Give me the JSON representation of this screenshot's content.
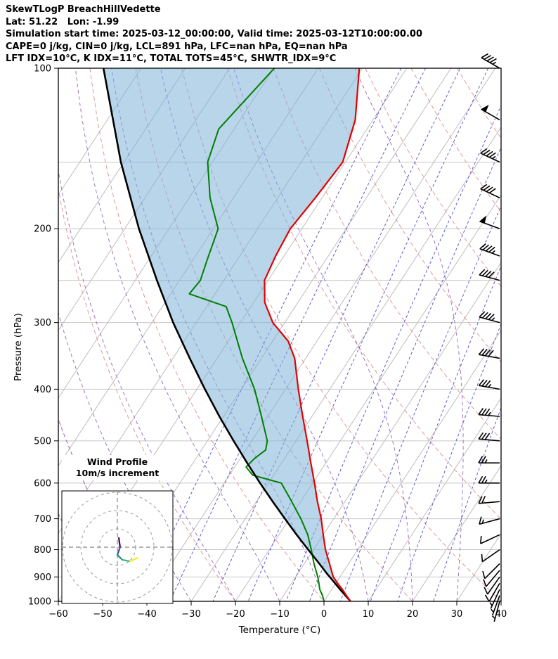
{
  "header": {
    "title": "SkewTLogP BreachHillVedette",
    "location": "Lat: 51.22   Lon: -1.99",
    "times_line": "Simulation start time: 2025-03-12_00:00:00, Valid time: 2025-03-12T10:00:00.00",
    "stability_line1": "CAPE=0 j/kg, CIN=0 j/kg, LCL=891 hPa, LFC=nan hPa, EQ=nan hPa",
    "stability_line2": "LFT IDX=10°C, K IDX=11°C, TOTAL TOTS=45°C, SHWTR_IDX=9°C"
  },
  "axes": {
    "x_label": "Temperature (°C)",
    "y_label": "Pressure (hPa)",
    "x_ticks": [
      -60,
      -50,
      -40,
      -30,
      -20,
      -10,
      0,
      10,
      20,
      30,
      40
    ],
    "y_ticks": [
      100,
      200,
      300,
      400,
      500,
      600,
      700,
      800,
      900,
      1000
    ]
  },
  "inset": {
    "title_line1": "Wind Profile",
    "title_line2": "10m/s increment",
    "ring_interval_ms": 10,
    "rings_ms": [
      10,
      20,
      30
    ]
  },
  "chart_data": {
    "type": "skewt-logp",
    "temperature_range_c": [
      -60,
      40
    ],
    "pressure_range_hpa": [
      100,
      1000
    ],
    "pressure_gridlines_hpa": [
      150,
      200,
      250,
      300,
      400,
      500,
      600,
      700,
      800,
      900
    ],
    "isotherms_c": {
      "start": -120,
      "end": 40,
      "step": 10,
      "color": "#bdbdbd"
    },
    "dry_adiabats_c": {
      "values": [
        -60,
        -40,
        -20,
        0,
        20,
        40,
        60,
        80,
        100,
        120,
        140,
        160,
        180
      ],
      "color": "#de8f8f"
    },
    "moist_adiabats_c": {
      "values": [
        -50,
        -40,
        -30,
        -20,
        -10,
        0,
        10,
        20,
        30,
        40
      ],
      "color": "#9467bd"
    },
    "mixing_ratio_gkg": {
      "values": [
        0.1,
        0.2,
        0.5,
        1,
        2,
        3,
        5,
        8,
        12,
        20
      ],
      "color": "#5050c8"
    },
    "temperature_profile": {
      "name": "temperature",
      "color": "#e60000",
      "points_p_t": [
        [
          1000,
          6.0
        ],
        [
          975,
          4.2
        ],
        [
          950,
          2.4
        ],
        [
          925,
          0.4
        ],
        [
          900,
          -1.5
        ],
        [
          850,
          -4.3
        ],
        [
          800,
          -7.3
        ],
        [
          750,
          -10.0
        ],
        [
          700,
          -12.8
        ],
        [
          650,
          -16.2
        ],
        [
          600,
          -19.6
        ],
        [
          550,
          -23.4
        ],
        [
          500,
          -27.5
        ],
        [
          450,
          -32.1
        ],
        [
          400,
          -37.1
        ],
        [
          350,
          -42.5
        ],
        [
          325,
          -46.5
        ],
        [
          300,
          -52.7
        ],
        [
          275,
          -57.5
        ],
        [
          250,
          -60.8
        ],
        [
          225,
          -61.9
        ],
        [
          200,
          -62.6
        ],
        [
          175,
          -61.5
        ],
        [
          150,
          -60.6
        ],
        [
          125,
          -64.0
        ],
        [
          100,
          -70.7
        ]
      ]
    },
    "dewpoint_profile": {
      "name": "dewpoint",
      "color": "#008000",
      "points_p_t": [
        [
          1000,
          0.0
        ],
        [
          975,
          -1.2
        ],
        [
          950,
          -2.7
        ],
        [
          925,
          -3.8
        ],
        [
          900,
          -5.0
        ],
        [
          850,
          -7.8
        ],
        [
          800,
          -10.5
        ],
        [
          750,
          -13.5
        ],
        [
          700,
          -17.4
        ],
        [
          650,
          -22.0
        ],
        [
          600,
          -27.1
        ],
        [
          580,
          -34.7
        ],
        [
          560,
          -37.4
        ],
        [
          540,
          -36.8
        ],
        [
          520,
          -35.5
        ],
        [
          500,
          -36.5
        ],
        [
          450,
          -41.4
        ],
        [
          400,
          -47.0
        ],
        [
          350,
          -54.3
        ],
        [
          300,
          -61.9
        ],
        [
          280,
          -65.6
        ],
        [
          265,
          -75.8
        ],
        [
          250,
          -75.3
        ],
        [
          230,
          -76.7
        ],
        [
          200,
          -78.9
        ],
        [
          175,
          -85.3
        ],
        [
          150,
          -91.1
        ],
        [
          130,
          -93.5
        ],
        [
          100,
          -89.9
        ]
      ]
    },
    "parcel_profile": {
      "name": "parcel",
      "color": "#000000",
      "points_p_t": [
        [
          1000,
          6.0
        ],
        [
          950,
          1.9
        ],
        [
          900,
          -2.3
        ],
        [
          891,
          -3.1
        ],
        [
          850,
          -6.6
        ],
        [
          800,
          -11.2
        ],
        [
          750,
          -16.0
        ],
        [
          700,
          -21.0
        ],
        [
          650,
          -26.3
        ],
        [
          600,
          -31.9
        ],
        [
          550,
          -37.8
        ],
        [
          500,
          -44.1
        ],
        [
          450,
          -50.9
        ],
        [
          400,
          -58.2
        ],
        [
          350,
          -66.2
        ],
        [
          300,
          -75.2
        ],
        [
          250,
          -85.1
        ],
        [
          200,
          -96.8
        ],
        [
          150,
          -110.7
        ],
        [
          100,
          -128.5
        ]
      ]
    },
    "cin_shading": {
      "color": "#7fb2d8",
      "opacity": 0.55,
      "between": [
        "parcel_profile",
        "temperature_profile"
      ]
    },
    "wind_barbs_p_kt_dir": [
      [
        100,
        45,
        300
      ],
      [
        125,
        50,
        300
      ],
      [
        150,
        45,
        295
      ],
      [
        175,
        40,
        295
      ],
      [
        200,
        50,
        290
      ],
      [
        225,
        45,
        290
      ],
      [
        250,
        40,
        285
      ],
      [
        300,
        45,
        285
      ],
      [
        350,
        40,
        280
      ],
      [
        400,
        35,
        280
      ],
      [
        450,
        35,
        275
      ],
      [
        500,
        30,
        275
      ],
      [
        550,
        25,
        270
      ],
      [
        600,
        25,
        270
      ],
      [
        650,
        20,
        265
      ],
      [
        700,
        15,
        255
      ],
      [
        750,
        10,
        245
      ],
      [
        800,
        10,
        235
      ],
      [
        850,
        10,
        225
      ],
      [
        875,
        10,
        220
      ],
      [
        900,
        10,
        215
      ],
      [
        925,
        10,
        210
      ],
      [
        950,
        5,
        205
      ],
      [
        975,
        5,
        200
      ],
      [
        1000,
        5,
        195
      ]
    ],
    "hodograph": {
      "points_uv_ms": [
        [
          0.8,
          5.0
        ],
        [
          1.5,
          0.0
        ],
        [
          0.0,
          -4.2
        ],
        [
          2.7,
          -6.9
        ],
        [
          6.9,
          -7.7
        ],
        [
          11.2,
          -5.8
        ]
      ],
      "segment_colors": [
        "#440154",
        "#3b528b",
        "#21918c",
        "#35b779",
        "#fde725"
      ]
    }
  }
}
